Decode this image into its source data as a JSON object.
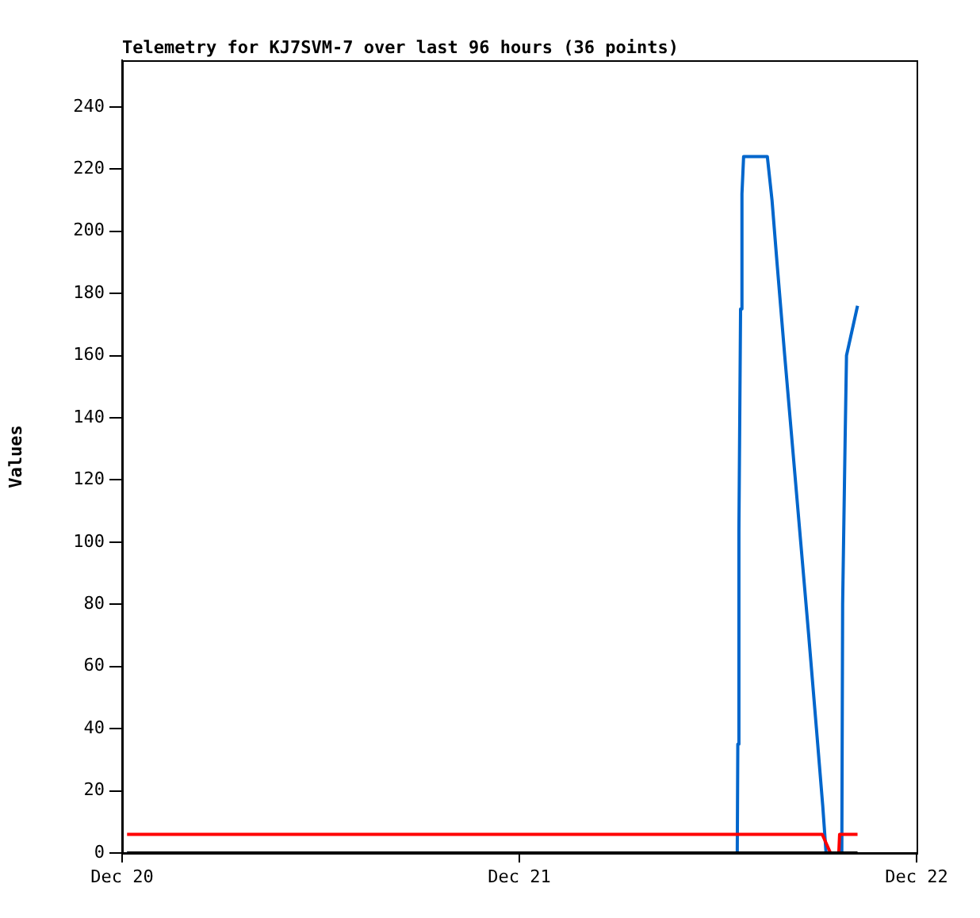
{
  "chart_data": {
    "type": "line",
    "title": "Telemetry for KJ7SVM-7 over last 96 hours (36 points)",
    "ylabel": "Values",
    "xlim": [
      "--12-20",
      "--12-22"
    ],
    "xticks": [
      {
        "value": "--12-20",
        "label": "Dec 20"
      },
      {
        "value": "--12-21",
        "label": "Dec 21"
      },
      {
        "value": "--12-22",
        "label": "Dec 22"
      }
    ],
    "ylim": [
      0,
      255
    ],
    "yticks": [
      0,
      20,
      40,
      60,
      80,
      100,
      120,
      140,
      160,
      180,
      200,
      220,
      240
    ],
    "grid": false,
    "legend": false,
    "marker": "none",
    "line_style": "solid",
    "series": [
      {
        "color": "#000000",
        "x": [
          "--12-20T00:18",
          "--12-21T20:26"
        ],
        "values": [
          0,
          0
        ]
      },
      {
        "color": "#ff0000",
        "x": [
          "--12-20T00:18",
          "--12-21T18:18",
          "--12-21T18:48",
          "--12-21T19:18",
          "--12-21T19:21",
          "--12-21T20:26"
        ],
        "values": [
          6,
          6,
          0,
          0,
          6,
          6
        ]
      },
      {
        "color": "#0066cc",
        "x": [
          "--12-20T00:18",
          "--12-21T13:10",
          "--12-21T13:12",
          "--12-21T13:16",
          "--12-21T13:22",
          "--12-21T13:27",
          "--12-21T13:33",
          "--12-21T14:59",
          "--12-21T15:16",
          "--12-21T15:34",
          "--12-21T16:02",
          "--12-21T16:31",
          "--12-21T17:00",
          "--12-21T17:29",
          "--12-21T17:57",
          "--12-21T18:20",
          "--12-21T18:32",
          "--12-21T19:29",
          "--12-21T19:32",
          "--12-21T19:41",
          "--12-21T19:46",
          "--12-21T20:26"
        ],
        "values": [
          0,
          0,
          35,
          104,
          175,
          212,
          224,
          224,
          210,
          190,
          160,
          130,
          100,
          70,
          40,
          15,
          0,
          0,
          80,
          133,
          160,
          176
        ]
      }
    ]
  }
}
